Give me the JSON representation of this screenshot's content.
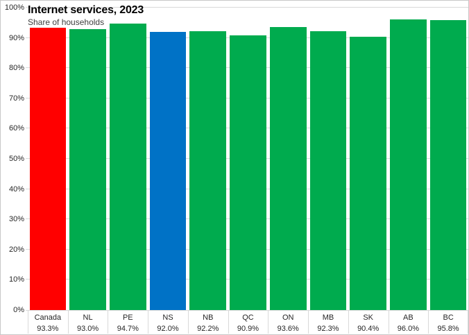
{
  "chart_data": {
    "type": "bar",
    "title": "Internet services, 2023",
    "subtitle": "Share of households",
    "categories": [
      "Canada",
      "NL",
      "PE",
      "NS",
      "NB",
      "QC",
      "ON",
      "MB",
      "SK",
      "AB",
      "BC"
    ],
    "values": [
      93.3,
      93.0,
      94.7,
      92.0,
      92.2,
      90.9,
      93.6,
      92.3,
      90.4,
      96.0,
      95.8
    ],
    "value_labels": [
      "93.3%",
      "93.0%",
      "94.7%",
      "92.0%",
      "92.2%",
      "90.9%",
      "93.6%",
      "92.3%",
      "90.4%",
      "96.0%",
      "95.8%"
    ],
    "bar_colors": [
      "#FF0000",
      "#00AB4E",
      "#00AB4E",
      "#0072C6",
      "#00AB4E",
      "#00AB4E",
      "#00AB4E",
      "#00AB4E",
      "#00AB4E",
      "#00AB4E",
      "#00AB4E"
    ],
    "y_tick_labels": [
      "0%",
      "10%",
      "20%",
      "30%",
      "40%",
      "50%",
      "60%",
      "70%",
      "80%",
      "90%",
      "100%"
    ],
    "ylim": [
      0,
      100
    ],
    "y_tick_step": 10,
    "grid": true,
    "legend": "none",
    "colors": {
      "province_default": "#00AB4E",
      "canada_highlight": "#FF0000",
      "ns_highlight": "#0072C6",
      "gridline": "#D9D9D9",
      "border": "#C8C8C8",
      "title_text": "#000000",
      "subtitle_text": "#404040",
      "axis_text": "#262626"
    }
  }
}
